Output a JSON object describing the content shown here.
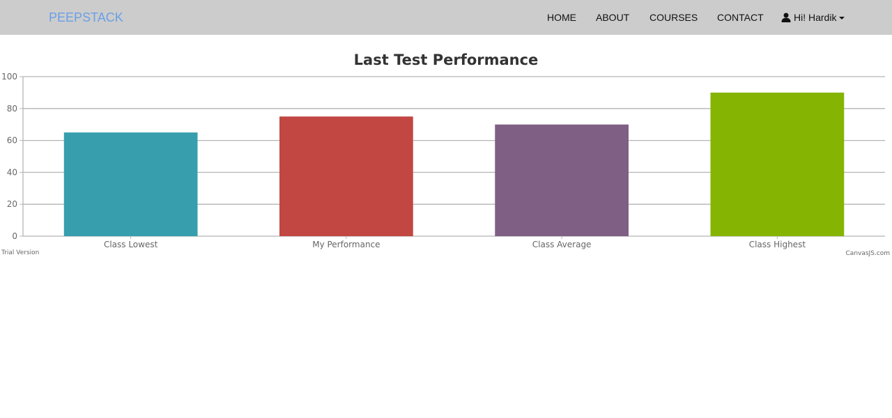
{
  "nav": {
    "brand": "PEEPSTACK",
    "links": [
      "HOME",
      "ABOUT",
      "COURSES",
      "CONTACT"
    ],
    "user_label": "Hi! Hardik",
    "user_icon": "user-icon",
    "dropdown_icon": "chevron-down-icon"
  },
  "chart_data": {
    "type": "bar",
    "title": "Last Test Performance",
    "xlabel": "",
    "ylabel": "",
    "categories": [
      "Class Lowest",
      "My Performance",
      "Class Average",
      "Class Highest"
    ],
    "values": [
      65,
      75,
      70,
      90
    ],
    "colors": [
      "#369ead",
      "#c24642",
      "#7f6084",
      "#86b402"
    ],
    "ylim": [
      0,
      100
    ],
    "yticks": [
      0,
      20,
      40,
      60,
      80,
      100
    ],
    "grid": true,
    "legend": "none"
  },
  "footer": {
    "trial": "Trial Version",
    "credit": "CanvasJS.com"
  }
}
